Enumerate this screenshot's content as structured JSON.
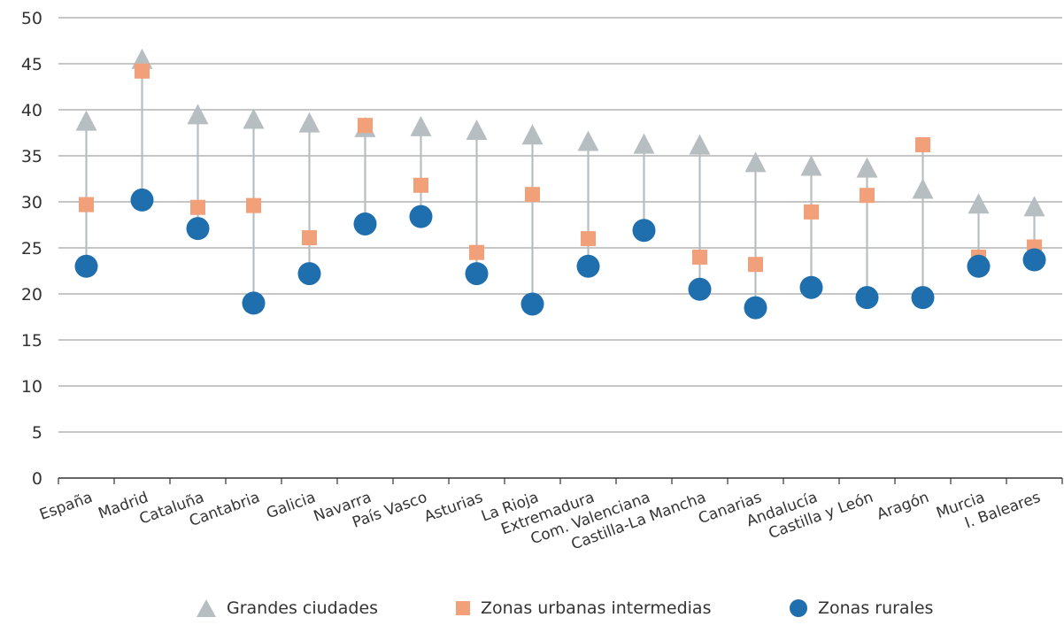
{
  "chart_data": {
    "type": "scatter",
    "title": "",
    "xlabel": "",
    "ylabel": "",
    "ylim": [
      0,
      50
    ],
    "yticks": [
      0,
      5,
      10,
      15,
      20,
      25,
      30,
      35,
      40,
      45,
      50
    ],
    "grid": true,
    "legend_position": "bottom",
    "categories": [
      "España",
      "Madrid",
      "Cataluña",
      "Cantabria",
      "Galicia",
      "Navarra",
      "País Vasco",
      "Asturias",
      "La Rioja",
      "Extremadura",
      "Com. Valenciana",
      "Castilla-La Mancha",
      "Canarias",
      "Andalucía",
      "Castilla y León",
      "Aragón",
      "Murcia",
      "I. Baleares"
    ],
    "series": [
      {
        "name": "Grandes ciudades",
        "marker": "triangle",
        "color": "#b7bec2",
        "values": [
          38.5,
          45.2,
          39.2,
          38.7,
          38.3,
          37.8,
          37.9,
          37.5,
          37.0,
          36.3,
          36.0,
          35.9,
          34.0,
          33.6,
          33.4,
          31.1,
          29.5,
          29.2
        ]
      },
      {
        "name": "Zonas urbanas intermedias",
        "marker": "square",
        "color": "#f1a07a",
        "values": [
          29.7,
          44.2,
          29.4,
          29.6,
          26.1,
          38.3,
          31.8,
          24.5,
          30.8,
          26.0,
          27.0,
          24.0,
          23.2,
          28.9,
          30.7,
          36.2,
          24.0,
          25.1
        ]
      },
      {
        "name": "Zonas rurales",
        "marker": "circle",
        "color": "#1f6fae",
        "values": [
          23.0,
          30.2,
          27.1,
          19.0,
          22.2,
          27.6,
          28.4,
          22.2,
          18.9,
          23.0,
          26.9,
          20.5,
          18.5,
          20.7,
          19.6,
          19.6,
          23.0,
          23.7
        ]
      }
    ]
  }
}
